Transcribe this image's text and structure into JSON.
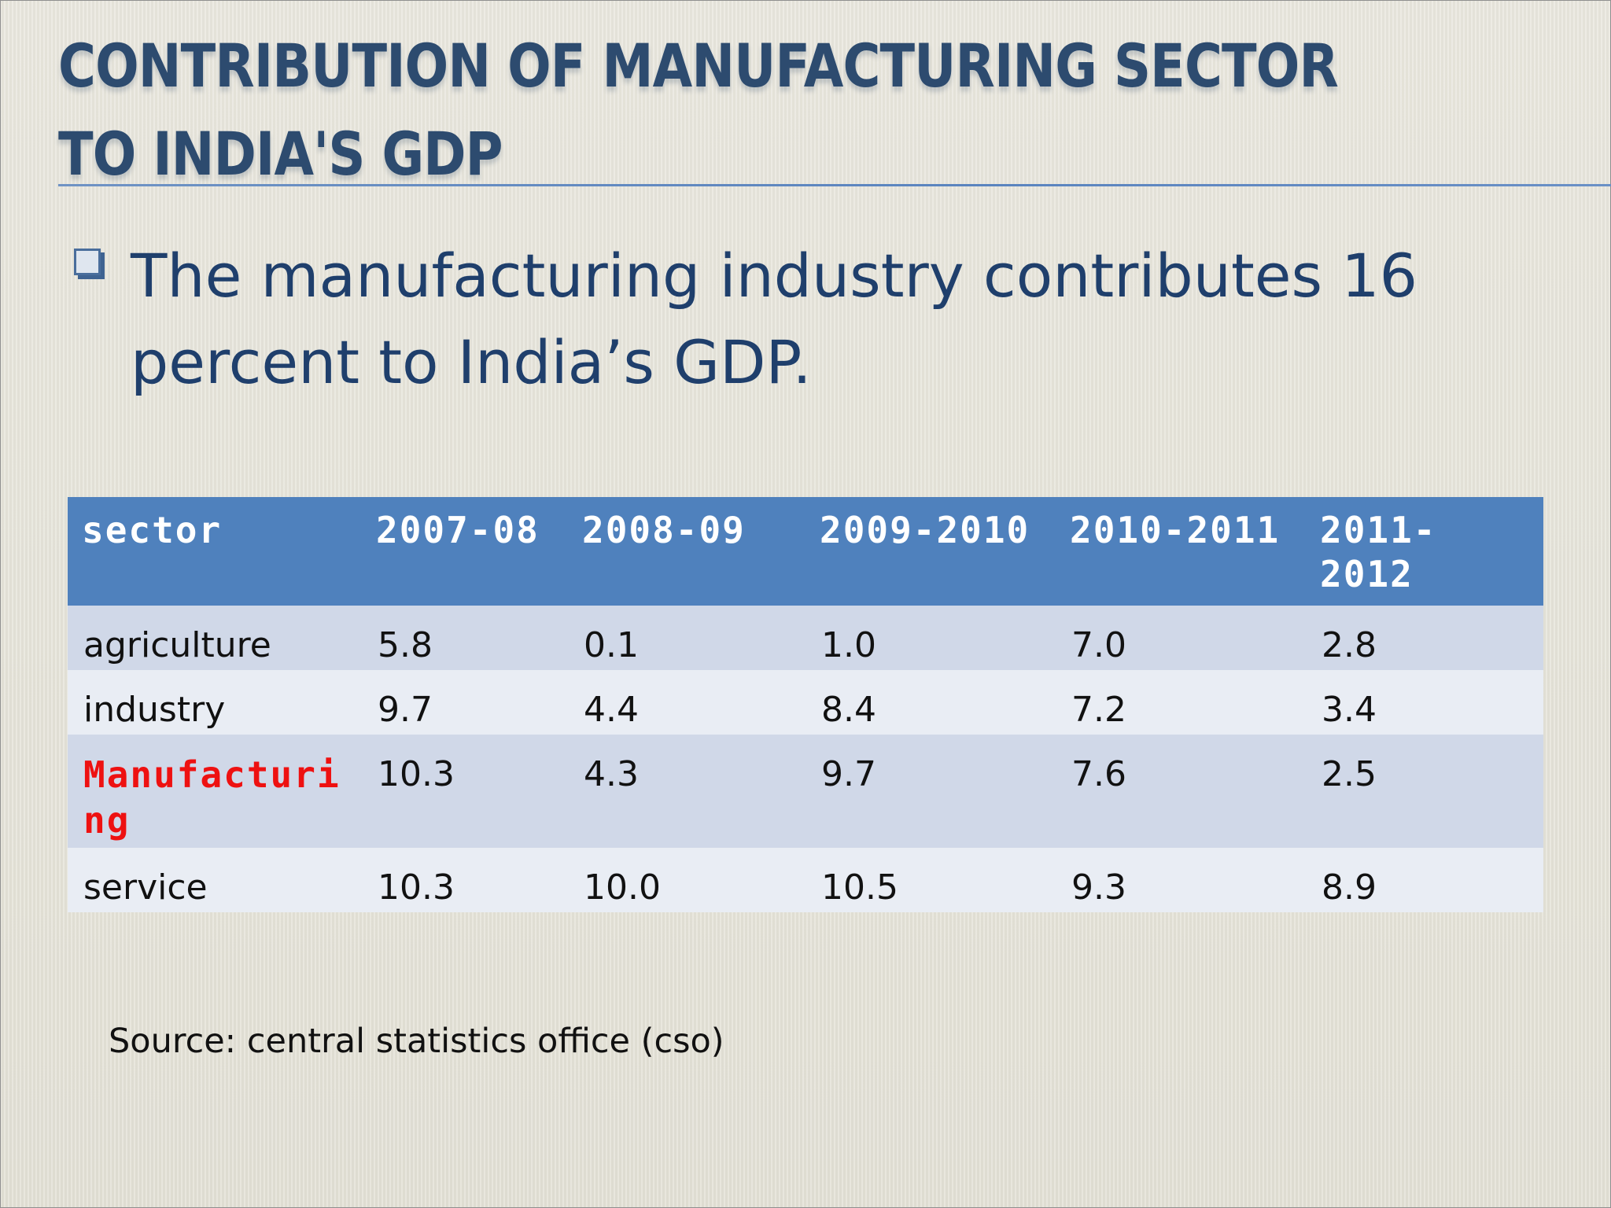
{
  "slide": {
    "title": "CONTRIBUTION OF MANUFACTURING SECTOR TO INDIA'S GDP",
    "bullet": "The manufacturing industry contributes 16 percent to India’s GDP.",
    "source": "Source: central statistics office (cso)",
    "colors": {
      "title": "#2d4b6f",
      "bullet_text": "#1f3f6c",
      "table_header_bg": "#4f81bd",
      "row_band_dark": "#d0d8e8",
      "row_band_light": "#e9edf4",
      "highlight_text": "#ee1111"
    },
    "icons": {
      "bullet": "square-bullet-icon"
    }
  },
  "table": {
    "headers": [
      "sector",
      "2007-08",
      "2008-09",
      "2009-2010",
      "2010-2011",
      "2011-2012"
    ],
    "rows": [
      [
        "agriculture",
        "5.8",
        "0.1",
        "1.0",
        "7.0",
        "2.8"
      ],
      [
        "industry",
        "9.7",
        "4.4",
        "8.4",
        "7.2",
        "3.4"
      ],
      [
        "Manufacturing",
        "10.3",
        "4.3",
        "9.7",
        "7.6",
        "2.5"
      ],
      [
        "service",
        "10.3",
        "10.0",
        "10.5",
        "9.3",
        "8.9"
      ]
    ],
    "highlighted_row": "Manufacturing"
  }
}
